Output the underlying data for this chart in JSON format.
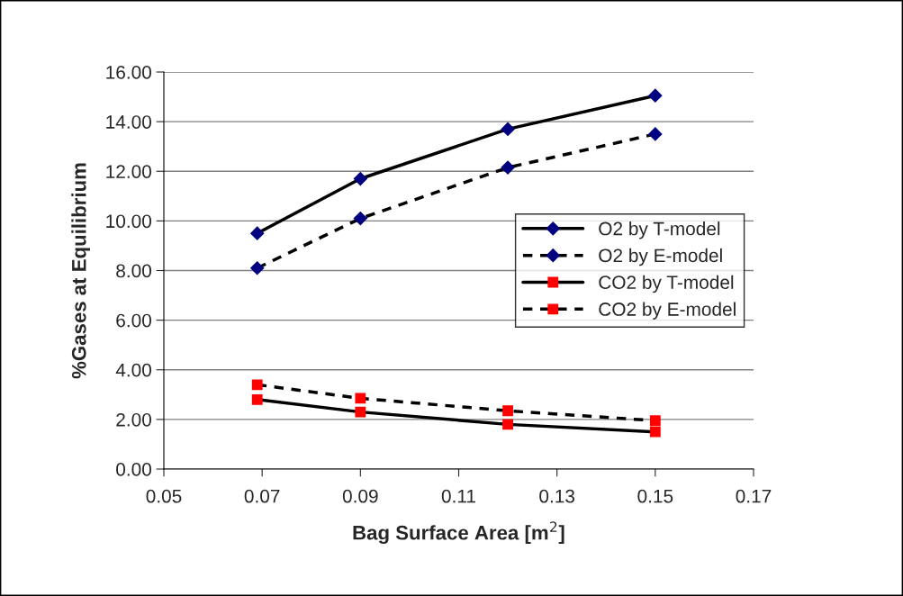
{
  "chart_data": {
    "type": "line",
    "xlabel": "Bag Surface Area [m$^{2}$]",
    "ylabel": "%Gases at Equilibrium",
    "x": [
      0.069,
      0.09,
      0.12,
      0.15
    ],
    "series": [
      {
        "name": "O2 by T-model",
        "color": "#000080",
        "marker": "diamond",
        "line_style": "solid",
        "values": [
          9.5,
          11.7,
          13.7,
          15.05
        ]
      },
      {
        "name": "O2 by E-model",
        "color": "#000080",
        "marker": "diamond",
        "line_style": "dashed",
        "values": [
          8.1,
          10.1,
          12.15,
          13.5
        ]
      },
      {
        "name": "CO2 by T-model",
        "color": "#ff0000",
        "marker": "square",
        "line_style": "solid",
        "values": [
          2.8,
          2.3,
          1.8,
          1.5
        ]
      },
      {
        "name": "CO2 by E-model",
        "color": "#ff0000",
        "marker": "square",
        "line_style": "dashed",
        "values": [
          3.4,
          2.85,
          2.35,
          1.95
        ]
      }
    ],
    "xlim": [
      0.05,
      0.17
    ],
    "xticks": [
      0.05,
      0.07,
      0.09,
      0.11,
      0.13,
      0.15,
      0.17
    ],
    "ylim": [
      0,
      16
    ],
    "yticks": [
      {
        "value": 0,
        "label": "0.00"
      },
      {
        "value": 2,
        "label": "2.00"
      },
      {
        "value": 4,
        "label": "4.00"
      },
      {
        "value": 6,
        "label": "6.00"
      },
      {
        "value": 8,
        "label": "8.00"
      },
      {
        "value": 10,
        "label": "10.00"
      },
      {
        "value": 12,
        "label": "12.00"
      },
      {
        "value": 14,
        "label": "14.00"
      },
      {
        "value": 16,
        "label": "16.00"
      }
    ],
    "grid": "y",
    "legend": "right"
  }
}
